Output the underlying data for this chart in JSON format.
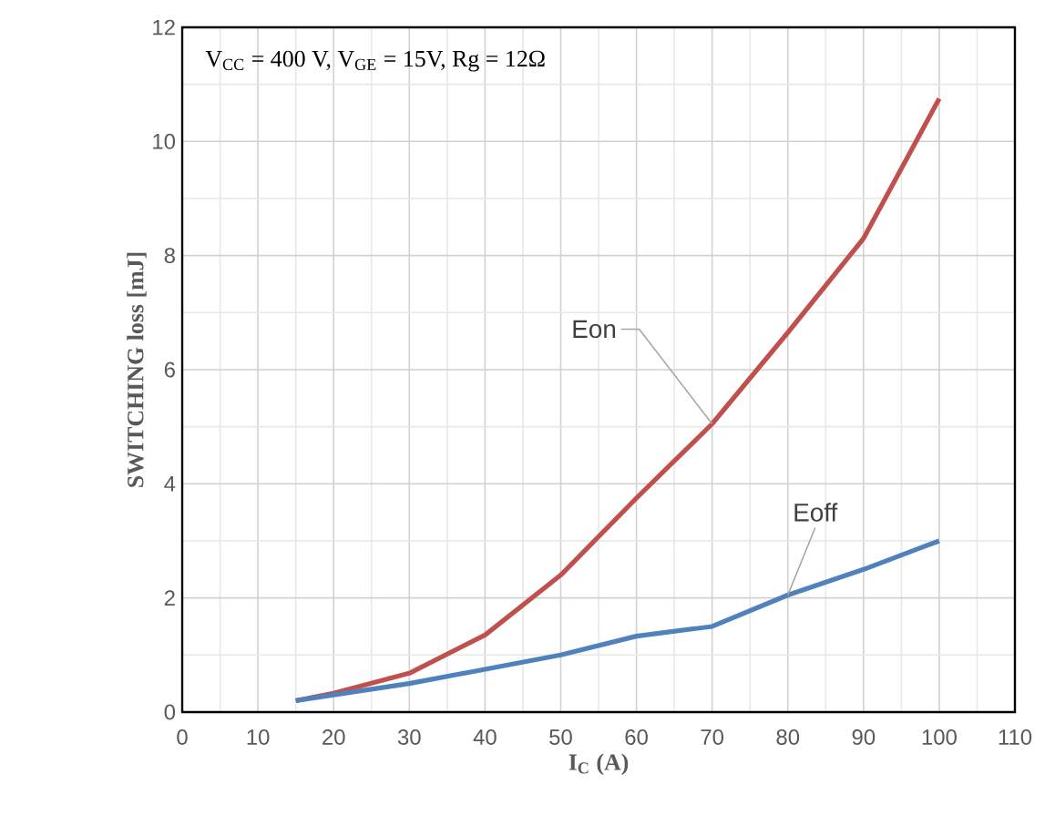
{
  "chart_data": {
    "type": "line",
    "xlabel": "**I$_{C}$ (A)**",
    "ylabel": "SWITCHING loss [mJ]",
    "x": [
      15,
      20,
      30,
      40,
      50,
      60,
      70,
      80,
      90,
      100
    ],
    "series": [
      {
        "color": "#c0504d",
        "values": [
          0.2,
          0.33,
          0.68,
          1.35,
          2.4,
          3.75,
          5.05,
          6.65,
          8.3,
          10.75
        ]
      },
      {
        "color": "#4f81bd",
        "values": [
          0.2,
          0.3,
          0.5,
          0.75,
          1.0,
          1.33,
          1.5,
          2.05,
          2.5,
          3.0
        ]
      }
    ],
    "xlim": [
      0,
      110
    ],
    "xticks": [
      0,
      10,
      20,
      30,
      40,
      50,
      60,
      70,
      80,
      90,
      100,
      110
    ],
    "ylim": [
      0,
      12
    ],
    "yticks": [
      0,
      2,
      4,
      6,
      8,
      10,
      12
    ],
    "grid": true,
    "marker": "none",
    "line_style": "solid",
    "annotations": [
      "V$_{CC}$ = 400 V, V$_{GE}$ = 15V, Rg = 12Ω",
      {
        "text": "Eon",
        "x": 70,
        "y": 5.05
      },
      {
        "text": "Eoff",
        "x": 80,
        "y": 2.05
      }
    ]
  }
}
